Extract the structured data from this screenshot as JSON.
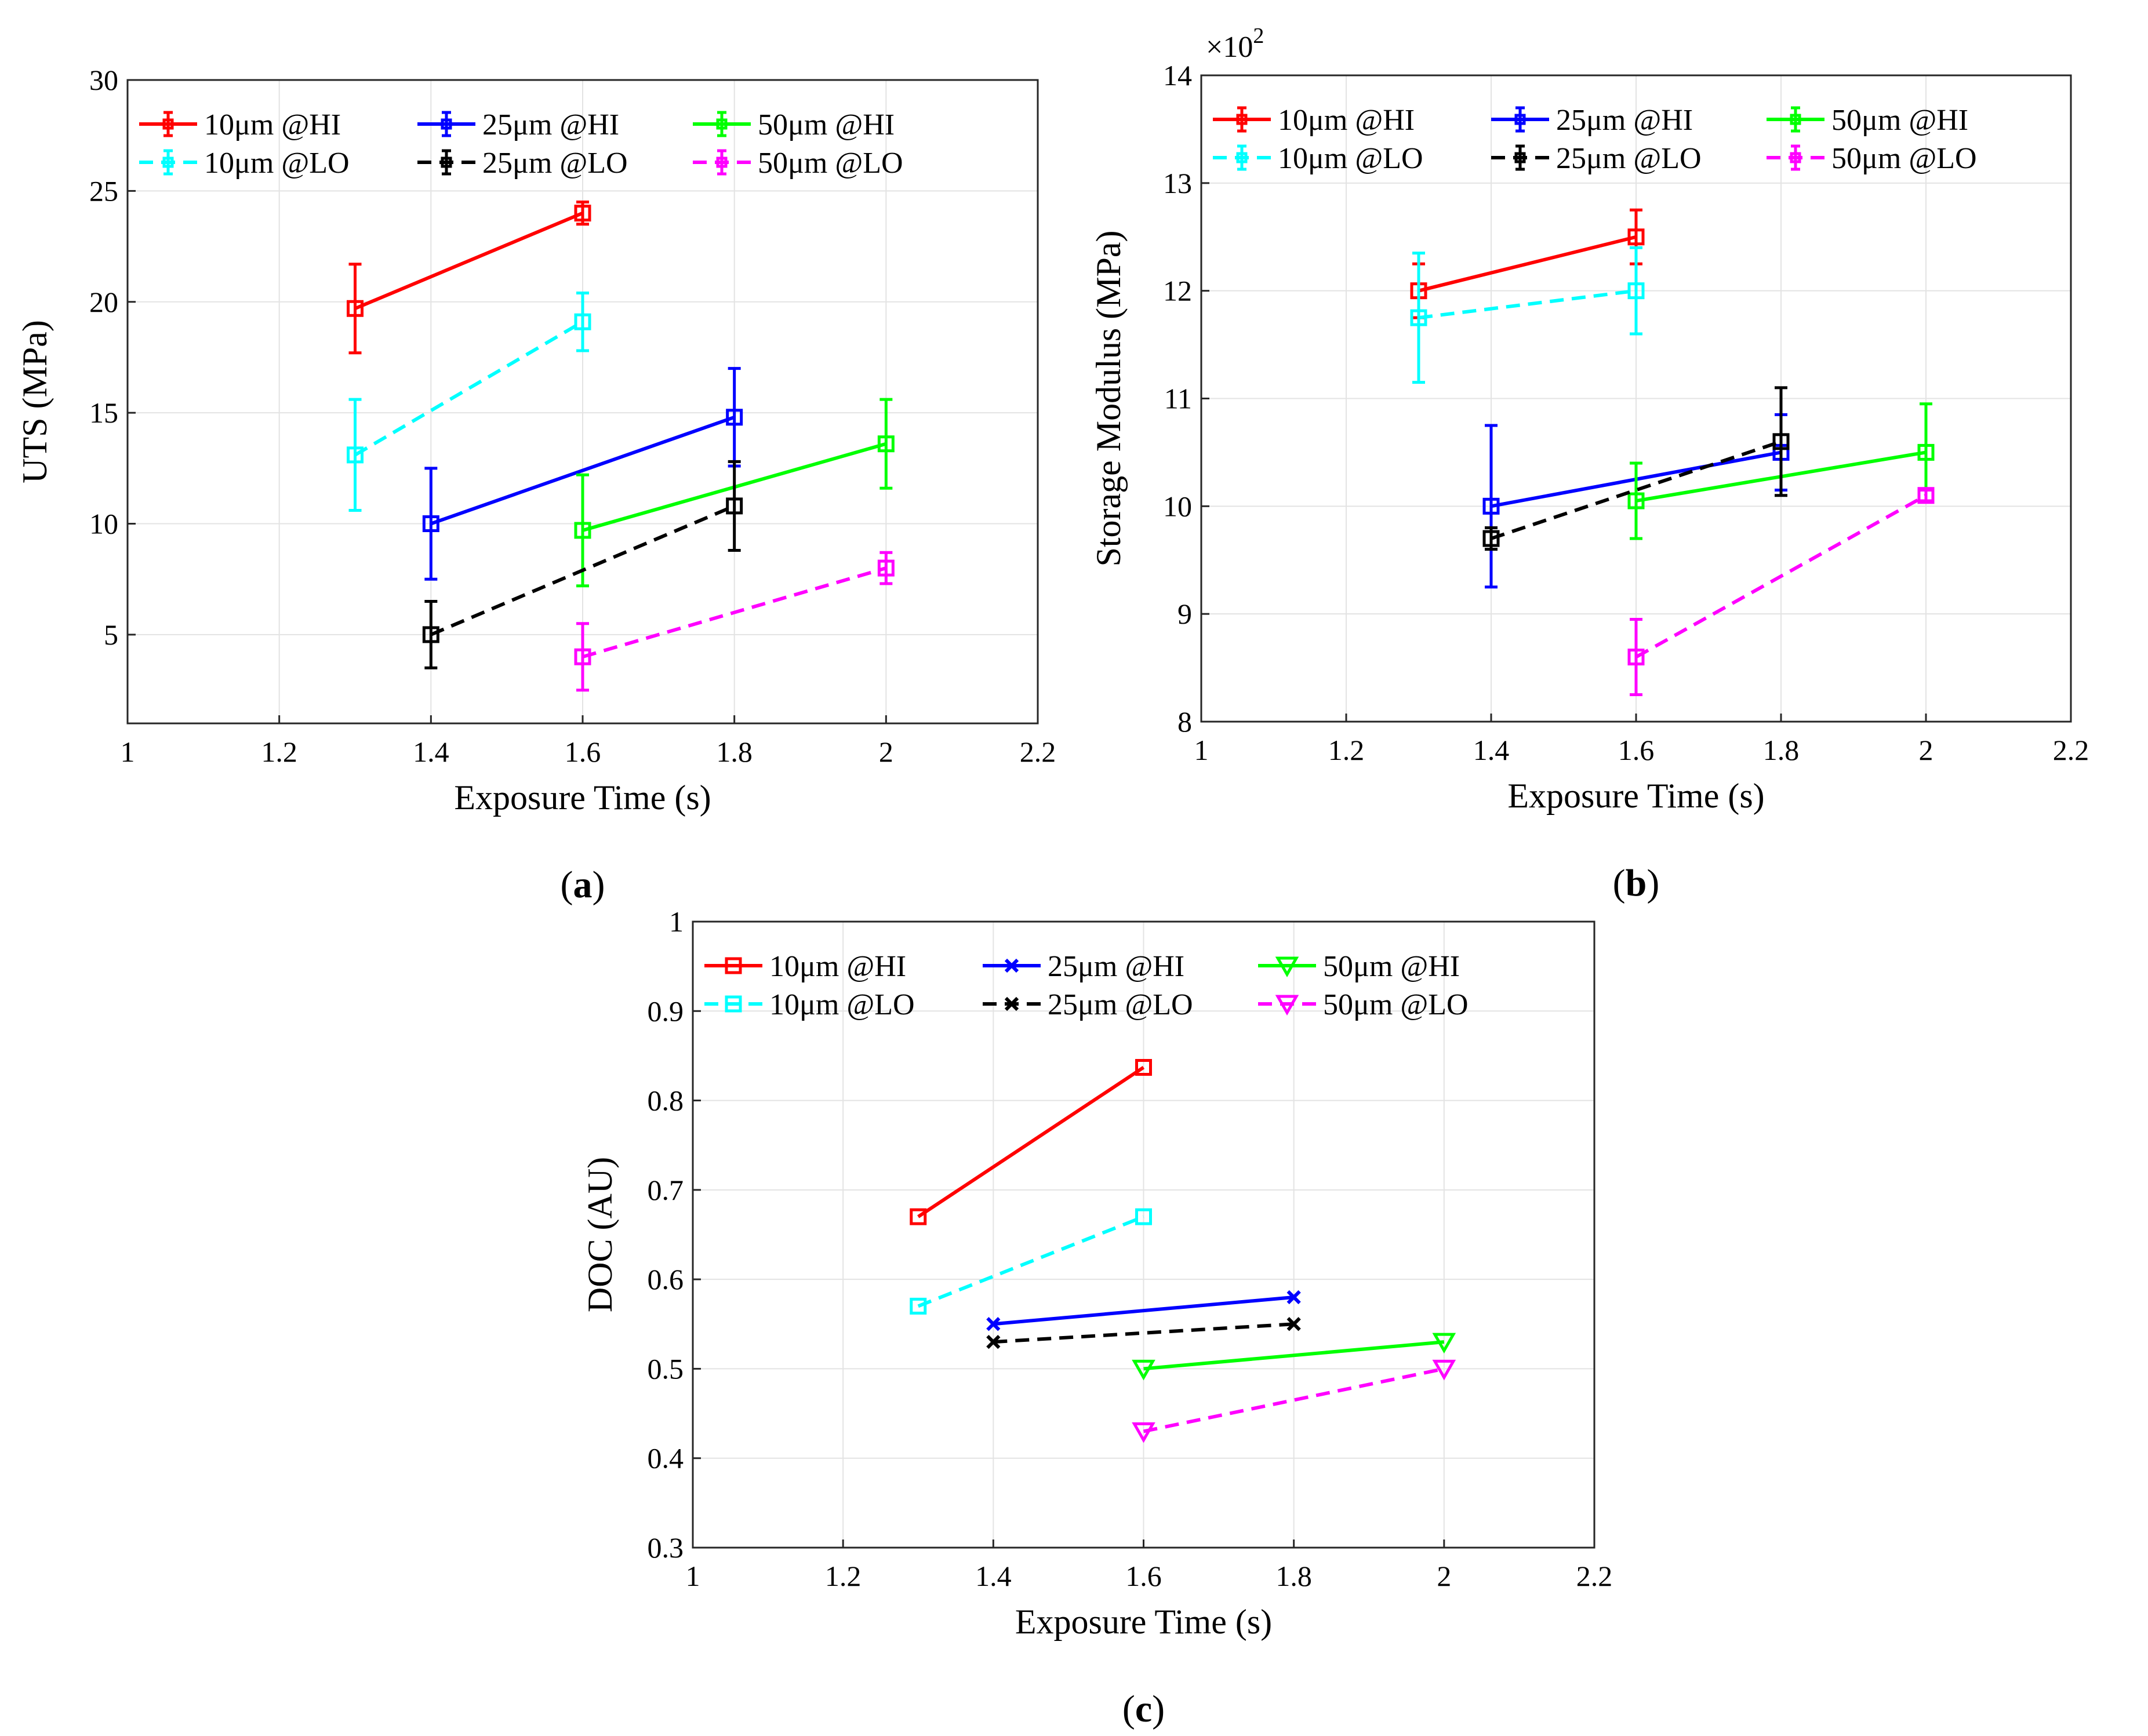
{
  "figure": {
    "panels": [
      "(",
      "a",
      ")",
      "(",
      "b",
      ")",
      "(",
      "c",
      ")"
    ]
  },
  "chart_data": [
    {
      "id": "a",
      "type": "line",
      "panel_label": "a",
      "title": "",
      "xlabel": "Exposure Time (s)",
      "ylabel": "UTS (MPa)",
      "xlim": [
        1,
        2.2
      ],
      "ylim": [
        1,
        30
      ],
      "xticks": [
        1,
        1.2,
        1.4,
        1.6,
        1.8,
        2,
        2.2
      ],
      "xtick_labels": [
        "1",
        "1.2",
        "1.4",
        "1.6",
        "1.8",
        "2",
        "2.2"
      ],
      "yticks": [
        5,
        10,
        15,
        20,
        25,
        30
      ],
      "ytick_labels": [
        "5",
        "10",
        "15",
        "20",
        "25",
        "30"
      ],
      "grid": true,
      "legend_style": "errorbar",
      "exponent_label": "",
      "series": [
        {
          "name": "10μm @HI",
          "color": "#ff0000",
          "dash": "solid",
          "marker": "square",
          "x": [
            1.3,
            1.6
          ],
          "y": [
            19.7,
            24.0
          ],
          "err": [
            2.0,
            0.5
          ]
        },
        {
          "name": "25μm @HI",
          "color": "#0000ff",
          "dash": "solid",
          "marker": "square",
          "x": [
            1.4,
            1.8
          ],
          "y": [
            10.0,
            14.8
          ],
          "err": [
            2.5,
            2.2
          ]
        },
        {
          "name": "50μm @HI",
          "color": "#00ff00",
          "dash": "solid",
          "marker": "square",
          "x": [
            1.6,
            2.0
          ],
          "y": [
            9.7,
            13.6
          ],
          "err": [
            2.5,
            2.0
          ]
        },
        {
          "name": "10μm @LO",
          "color": "#00ffff",
          "dash": "dashed",
          "marker": "square",
          "x": [
            1.3,
            1.6
          ],
          "y": [
            13.1,
            19.1
          ],
          "err": [
            2.5,
            1.3
          ]
        },
        {
          "name": "25μm @LO",
          "color": "#000000",
          "dash": "dashed",
          "marker": "square",
          "x": [
            1.4,
            1.8
          ],
          "y": [
            5.0,
            10.8
          ],
          "err": [
            1.5,
            2.0
          ]
        },
        {
          "name": "50μm @LO",
          "color": "#ff00ff",
          "dash": "dashed",
          "marker": "square",
          "x": [
            1.6,
            2.0
          ],
          "y": [
            4.0,
            8.0
          ],
          "err": [
            1.5,
            0.7
          ]
        }
      ]
    },
    {
      "id": "b",
      "type": "line",
      "panel_label": "b",
      "title": "",
      "xlabel": "Exposure Time (s)",
      "ylabel": "Storage Modulus (MPa)",
      "xlim": [
        1,
        2.2
      ],
      "ylim": [
        8,
        14
      ],
      "xticks": [
        1,
        1.2,
        1.4,
        1.6,
        1.8,
        2,
        2.2
      ],
      "xtick_labels": [
        "1",
        "1.2",
        "1.4",
        "1.6",
        "1.8",
        "2",
        "2.2"
      ],
      "yticks": [
        8,
        9,
        10,
        11,
        12,
        13,
        14
      ],
      "ytick_labels": [
        "8",
        "9",
        "10",
        "11",
        "12",
        "13",
        "14"
      ],
      "grid": true,
      "legend_style": "errorbar",
      "exponent_label": "×10",
      "exponent_power": "2",
      "series": [
        {
          "name": "10μm @HI",
          "color": "#ff0000",
          "dash": "solid",
          "marker": "square",
          "x": [
            1.3,
            1.6
          ],
          "y": [
            12.0,
            12.5
          ],
          "err": [
            0.25,
            0.25
          ]
        },
        {
          "name": "25μm @HI",
          "color": "#0000ff",
          "dash": "solid",
          "marker": "square",
          "x": [
            1.4,
            1.8
          ],
          "y": [
            10.0,
            10.5
          ],
          "err": [
            0.75,
            0.35
          ]
        },
        {
          "name": "50μm @HI",
          "color": "#00ff00",
          "dash": "solid",
          "marker": "square",
          "x": [
            1.6,
            2.0
          ],
          "y": [
            10.05,
            10.5
          ],
          "err": [
            0.35,
            0.45
          ]
        },
        {
          "name": "10μm @LO",
          "color": "#00ffff",
          "dash": "dashed",
          "marker": "square",
          "x": [
            1.3,
            1.6
          ],
          "y": [
            11.75,
            12.0
          ],
          "err": [
            0.6,
            0.4
          ]
        },
        {
          "name": "25μm @LO",
          "color": "#000000",
          "dash": "dashed",
          "marker": "square",
          "x": [
            1.4,
            1.8
          ],
          "y": [
            9.7,
            10.6
          ],
          "err": [
            0.1,
            0.5
          ]
        },
        {
          "name": "50μm @LO",
          "color": "#ff00ff",
          "dash": "dashed",
          "marker": "square",
          "x": [
            1.6,
            2.0
          ],
          "y": [
            8.6,
            10.1
          ],
          "err": [
            0.35,
            0.05
          ]
        }
      ]
    },
    {
      "id": "c",
      "type": "line",
      "panel_label": "c",
      "title": "",
      "xlabel": "Exposure Time (s)",
      "ylabel": "DOC (AU)",
      "xlim": [
        1,
        2.2
      ],
      "ylim": [
        0.3,
        1
      ],
      "xticks": [
        1,
        1.2,
        1.4,
        1.6,
        1.8,
        2,
        2.2
      ],
      "xtick_labels": [
        "1",
        "1.2",
        "1.4",
        "1.6",
        "1.8",
        "2",
        "2.2"
      ],
      "yticks": [
        0.3,
        0.4,
        0.5,
        0.6,
        0.7,
        0.8,
        0.9,
        1
      ],
      "ytick_labels": [
        "0.3",
        "0.4",
        "0.5",
        "0.6",
        "0.7",
        "0.8",
        "0.9",
        "1"
      ],
      "grid": true,
      "legend_style": "marker",
      "exponent_label": "",
      "series": [
        {
          "name": "10μm @HI",
          "color": "#ff0000",
          "dash": "solid",
          "marker": "square",
          "x": [
            1.3,
            1.6
          ],
          "y": [
            0.67,
            0.837
          ]
        },
        {
          "name": "25μm @HI",
          "color": "#0000ff",
          "dash": "solid",
          "marker": "x",
          "x": [
            1.4,
            1.8
          ],
          "y": [
            0.55,
            0.58
          ]
        },
        {
          "name": "50μm @HI",
          "color": "#00ff00",
          "dash": "solid",
          "marker": "triangle-down",
          "x": [
            1.6,
            2.0
          ],
          "y": [
            0.5,
            0.53
          ]
        },
        {
          "name": "10μm @LO",
          "color": "#00ffff",
          "dash": "dashed",
          "marker": "square",
          "x": [
            1.3,
            1.6
          ],
          "y": [
            0.57,
            0.67
          ]
        },
        {
          "name": "25μm @LO",
          "color": "#000000",
          "dash": "dashed",
          "marker": "x",
          "x": [
            1.4,
            1.8
          ],
          "y": [
            0.53,
            0.55
          ]
        },
        {
          "name": "50μm @LO",
          "color": "#ff00ff",
          "dash": "dashed",
          "marker": "triangle-down",
          "x": [
            1.6,
            2.0
          ],
          "y": [
            0.43,
            0.5
          ]
        }
      ]
    }
  ]
}
